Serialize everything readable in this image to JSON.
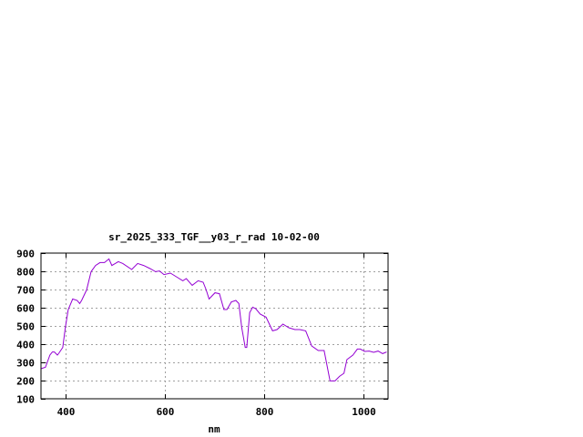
{
  "chart_data": {
    "type": "line",
    "title": "sr_2025_333_TGF__y03_r_rad 10-02-00",
    "xlabel": "nm",
    "ylabel": "",
    "xlim": [
      350,
      1050
    ],
    "ylim": [
      100,
      900
    ],
    "xticks": [
      400,
      600,
      800,
      1000
    ],
    "yticks": [
      100,
      200,
      300,
      400,
      500,
      600,
      700,
      800,
      900
    ],
    "grid": true,
    "line_color": "#9400d3",
    "series": [
      {
        "x": [
          350,
          359,
          368,
          373,
          377,
          383,
          386,
          394,
          399,
          405,
          414,
          423,
          428,
          432,
          442,
          451,
          460,
          469,
          478,
          487,
          493,
          506,
          515,
          533,
          545,
          557,
          570,
          581,
          589,
          598,
          611,
          623,
          636,
          643,
          655,
          667,
          677,
          683,
          689,
          701,
          710,
          719,
          725,
          734,
          743,
          749,
          755,
          762,
          765,
          771,
          777,
          783,
          792,
          804,
          817,
          826,
          838,
          850,
          862,
          872,
          884,
          896,
          909,
          921,
          933,
          943,
          952,
          961,
          967,
          979,
          988,
          994,
          1003,
          1012,
          1021,
          1030,
          1039,
          1047
        ],
        "y": [
          265,
          273,
          340,
          357,
          357,
          340,
          350,
          382,
          490,
          590,
          648,
          640,
          623,
          640,
          698,
          798,
          832,
          848,
          848,
          868,
          832,
          853,
          843,
          810,
          843,
          832,
          815,
          798,
          802,
          782,
          790,
          770,
          748,
          760,
          723,
          748,
          740,
          700,
          648,
          682,
          677,
          590,
          590,
          632,
          640,
          623,
          490,
          382,
          382,
          573,
          603,
          595,
          565,
          548,
          473,
          480,
          510,
          490,
          480,
          480,
          473,
          390,
          365,
          365,
          198,
          198,
          223,
          240,
          315,
          340,
          373,
          373,
          360,
          362,
          355,
          362,
          348,
          357
        ]
      }
    ]
  }
}
